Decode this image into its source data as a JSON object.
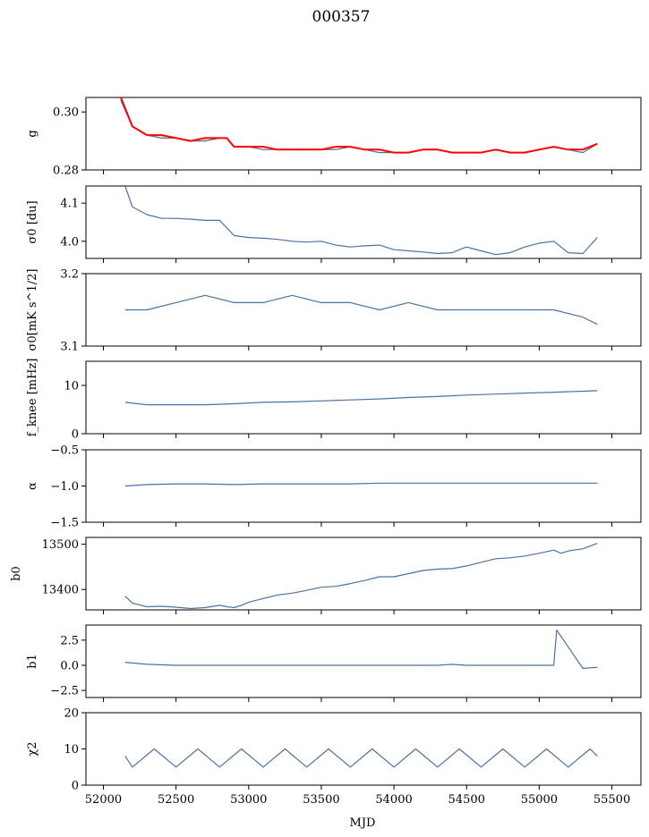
{
  "title": "000357",
  "x_axis": {
    "label": "MJD",
    "ticks": [
      "52000",
      "52500",
      "53000",
      "53500",
      "54000",
      "54500",
      "55000",
      "55500"
    ],
    "range": [
      51880,
      55700
    ]
  },
  "colors": {
    "series": "#4c72a0",
    "fit": "#ff0000"
  },
  "chart_data": [
    {
      "type": "line",
      "ylabel": "g",
      "ylim": [
        0.28,
        0.305
      ],
      "yticks": [
        0.28,
        0.3
      ],
      "ytick_labels": [
        "0.28",
        "0.30"
      ],
      "series": [
        {
          "x": [
            52120,
            52200,
            52300,
            52400,
            52500,
            52600,
            52700,
            52800,
            52850,
            52900,
            53000,
            53100,
            53200,
            53300,
            53400,
            53500,
            53600,
            53700,
            53800,
            53900,
            54000,
            54100,
            54200,
            54300,
            54400,
            54500,
            54600,
            54700,
            54800,
            54900,
            55000,
            55100,
            55200,
            55300,
            55400
          ],
          "y": [
            0.304,
            0.295,
            0.292,
            0.291,
            0.291,
            0.29,
            0.29,
            0.291,
            0.291,
            0.288,
            0.288,
            0.287,
            0.287,
            0.287,
            0.287,
            0.287,
            0.287,
            0.288,
            0.287,
            0.286,
            0.286,
            0.286,
            0.287,
            0.287,
            0.286,
            0.286,
            0.286,
            0.287,
            0.286,
            0.286,
            0.287,
            0.288,
            0.287,
            0.286,
            0.289
          ]
        },
        {
          "x": [
            52120,
            52200,
            52300,
            52400,
            52500,
            52600,
            52700,
            52800,
            52850,
            52900,
            53000,
            53100,
            53200,
            53300,
            53400,
            53500,
            53600,
            53700,
            53800,
            53900,
            54000,
            54100,
            54200,
            54300,
            54400,
            54500,
            54600,
            54700,
            54800,
            54900,
            55000,
            55100,
            55200,
            55300,
            55400
          ],
          "y": [
            0.305,
            0.295,
            0.292,
            0.292,
            0.291,
            0.29,
            0.291,
            0.291,
            0.291,
            0.288,
            0.288,
            0.288,
            0.287,
            0.287,
            0.287,
            0.287,
            0.288,
            0.288,
            0.287,
            0.287,
            0.286,
            0.286,
            0.287,
            0.287,
            0.286,
            0.286,
            0.286,
            0.287,
            0.286,
            0.286,
            0.287,
            0.288,
            0.287,
            0.287,
            0.289
          ]
        }
      ]
    },
    {
      "type": "line",
      "ylabel": "σ0 [du]",
      "ylim": [
        3.955,
        4.145
      ],
      "yticks": [
        4.0,
        4.1
      ],
      "ytick_labels": [
        "4.0",
        "4.1"
      ],
      "series": [
        {
          "x": [
            52150,
            52200,
            52300,
            52400,
            52500,
            52600,
            52700,
            52800,
            52900,
            53000,
            53100,
            53200,
            53300,
            53400,
            53500,
            53600,
            53700,
            53800,
            53900,
            54000,
            54100,
            54200,
            54300,
            54400,
            54500,
            54600,
            54700,
            54800,
            54900,
            55000,
            55100,
            55200,
            55300,
            55400
          ],
          "y": [
            4.145,
            4.09,
            4.07,
            4.06,
            4.06,
            4.058,
            4.055,
            4.055,
            4.015,
            4.01,
            4.008,
            4.005,
            4.0,
            3.998,
            4.0,
            3.99,
            3.985,
            3.988,
            3.99,
            3.978,
            3.975,
            3.972,
            3.968,
            3.97,
            3.985,
            3.975,
            3.965,
            3.97,
            3.985,
            3.995,
            4.0,
            3.97,
            3.968,
            4.01
          ]
        }
      ]
    },
    {
      "type": "line",
      "ylabel": "σ0[mK s^1/2]",
      "ylim": [
        3.1,
        3.2
      ],
      "yticks": [
        3.1,
        3.2
      ],
      "ytick_labels": [
        "3.1",
        "3.2"
      ],
      "series": [
        {
          "x": [
            52150,
            52300,
            52500,
            52700,
            52900,
            53100,
            53300,
            53500,
            53700,
            53900,
            54100,
            54300,
            54500,
            54700,
            54900,
            55100,
            55300,
            55400
          ],
          "y": [
            3.15,
            3.15,
            3.16,
            3.17,
            3.16,
            3.16,
            3.17,
            3.16,
            3.16,
            3.15,
            3.16,
            3.15,
            3.15,
            3.15,
            3.15,
            3.15,
            3.14,
            3.13
          ]
        }
      ]
    },
    {
      "type": "line",
      "ylabel": "f_knee [mHz]",
      "ylim": [
        0,
        15
      ],
      "yticks": [
        0,
        10
      ],
      "ytick_labels": [
        "0",
        "10"
      ],
      "series": [
        {
          "x": [
            52150,
            52300,
            52500,
            52700,
            52900,
            53100,
            53300,
            53500,
            53700,
            53900,
            54100,
            54300,
            54500,
            54700,
            54900,
            55100,
            55300,
            55400
          ],
          "y": [
            6.5,
            6.0,
            6.0,
            6.0,
            6.2,
            6.5,
            6.6,
            6.8,
            7.0,
            7.2,
            7.5,
            7.7,
            8.0,
            8.2,
            8.4,
            8.6,
            8.8,
            8.9
          ]
        }
      ]
    },
    {
      "type": "line",
      "ylabel": "α",
      "ylim": [
        -1.5,
        -0.5
      ],
      "yticks": [
        -1.5,
        -1.0,
        -0.5
      ],
      "ytick_labels": [
        "−1.5",
        "−1.0",
        "−0.5"
      ],
      "series": [
        {
          "x": [
            52150,
            52300,
            52500,
            52700,
            52900,
            53100,
            53300,
            53500,
            53700,
            53900,
            54100,
            54300,
            54500,
            54700,
            54900,
            55100,
            55300,
            55400
          ],
          "y": [
            -1.0,
            -0.98,
            -0.97,
            -0.97,
            -0.98,
            -0.97,
            -0.97,
            -0.97,
            -0.97,
            -0.96,
            -0.96,
            -0.96,
            -0.96,
            -0.96,
            -0.96,
            -0.96,
            -0.96,
            -0.96
          ]
        }
      ]
    },
    {
      "type": "line",
      "ylabel": "b0",
      "ylim": [
        13355,
        13515
      ],
      "yticks": [
        13400,
        13500
      ],
      "ytick_labels": [
        "13400",
        "13500"
      ],
      "series": [
        {
          "x": [
            52150,
            52200,
            52300,
            52400,
            52500,
            52600,
            52700,
            52800,
            52850,
            52900,
            52950,
            53000,
            53100,
            53200,
            53300,
            53400,
            53500,
            53600,
            53700,
            53800,
            53900,
            54000,
            54100,
            54200,
            54300,
            54400,
            54500,
            54600,
            54700,
            54800,
            54900,
            55000,
            55100,
            55150,
            55200,
            55300,
            55400
          ],
          "y": [
            13385,
            13370,
            13362,
            13363,
            13361,
            13358,
            13360,
            13365,
            13362,
            13360,
            13365,
            13372,
            13380,
            13388,
            13392,
            13398,
            13405,
            13407,
            13413,
            13420,
            13428,
            13428,
            13435,
            13442,
            13445,
            13446,
            13452,
            13460,
            13468,
            13470,
            13474,
            13480,
            13487,
            13480,
            13485,
            13490,
            13502
          ]
        }
      ]
    },
    {
      "type": "line",
      "ylabel": "b1",
      "ylim": [
        -3.2,
        4.0
      ],
      "yticks": [
        -2.5,
        0.0,
        2.5
      ],
      "ytick_labels": [
        "−2.5",
        "0.0",
        "2.5"
      ],
      "series": [
        {
          "x": [
            52150,
            52300,
            52500,
            52700,
            52900,
            53100,
            53300,
            53500,
            53700,
            53900,
            54100,
            54300,
            54400,
            54500,
            54700,
            54900,
            55100,
            55120,
            55300,
            55400
          ],
          "y": [
            0.3,
            0.1,
            0.0,
            0.0,
            0.0,
            0.0,
            0.0,
            0.0,
            0.0,
            0.0,
            0.0,
            0.0,
            0.1,
            0.0,
            0.0,
            0.0,
            0.0,
            3.5,
            -0.3,
            -0.2
          ]
        }
      ]
    },
    {
      "type": "line",
      "ylabel": "χ2",
      "ylim": [
        0,
        20
      ],
      "yticks": [
        0,
        10,
        20
      ],
      "ytick_labels": [
        "0",
        "10",
        "20"
      ],
      "series": [
        {
          "x": [
            52150,
            52200,
            52350,
            52500,
            52650,
            52800,
            52950,
            53100,
            53250,
            53400,
            53550,
            53700,
            53850,
            54000,
            54150,
            54300,
            54450,
            54600,
            54750,
            54900,
            55050,
            55200,
            55350,
            55400
          ],
          "y": [
            8,
            5,
            10,
            5,
            10,
            5,
            10,
            5,
            10,
            5,
            10,
            5,
            10,
            5,
            10,
            5,
            10,
            5,
            10,
            5,
            10,
            5,
            10,
            8
          ]
        }
      ]
    }
  ]
}
